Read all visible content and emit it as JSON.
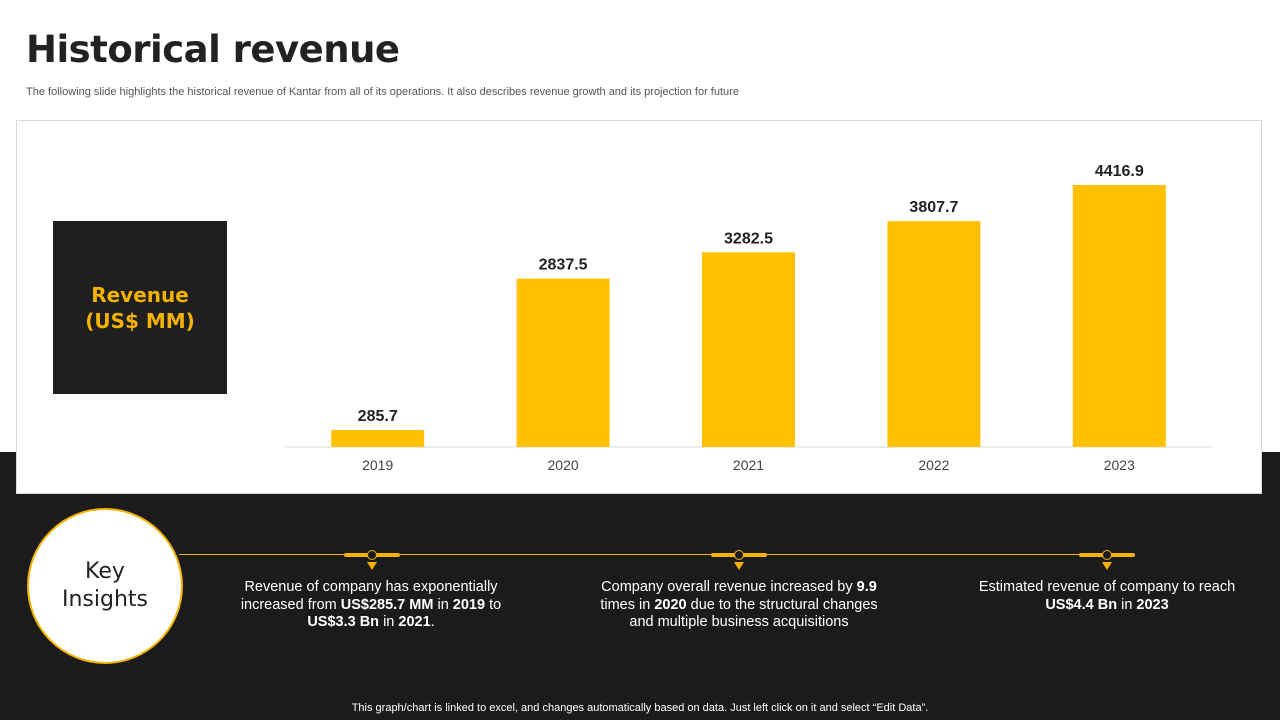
{
  "header": {
    "title": "Historical revenue",
    "subtitle": "The following slide highlights the historical revenue  of Kantar from all of its operations.  It also describes revenue  growth and its projection for future"
  },
  "revenue_box": {
    "label": "Revenue\n(US$ MM)"
  },
  "chart_data": {
    "type": "bar",
    "categories": [
      "2019",
      "2020",
      "2021",
      "2022",
      "2023"
    ],
    "values": [
      285.7,
      2837.5,
      3282.5,
      3807.7,
      4416.9
    ],
    "data_labels": [
      "285.7",
      "2837.5",
      "3282.5",
      "3807.7",
      "4416.9"
    ],
    "ylabel": "Revenue (US$ MM)",
    "ylim": [
      0,
      4500
    ],
    "grid": false,
    "legend": "none",
    "bar_color": "#FFC000"
  },
  "key_insights": {
    "title": "Key\nInsights",
    "items": [
      {
        "parts": [
          {
            "t": "Revenue of company has exponentially increased from ",
            "b": false
          },
          {
            "t": "US$285.7 MM",
            "b": true
          },
          {
            "t": " in ",
            "b": false
          },
          {
            "t": "2019",
            "b": true
          },
          {
            "t": " to ",
            "b": false
          },
          {
            "t": "US$3.3 Bn",
            "b": true
          },
          {
            "t": " in ",
            "b": false
          },
          {
            "t": "2021",
            "b": true
          },
          {
            "t": ".",
            "b": false
          }
        ]
      },
      {
        "parts": [
          {
            "t": "Company overall revenue increased by ",
            "b": false
          },
          {
            "t": "9.9",
            "b": true
          },
          {
            "t": " times  in ",
            "b": false
          },
          {
            "t": "2020",
            "b": true
          },
          {
            "t": " due to the structural changes and multiple business acquisitions",
            "b": false
          }
        ]
      },
      {
        "parts": [
          {
            "t": "Estimated revenue  of company to reach ",
            "b": false
          },
          {
            "t": "US$4.4 Bn",
            "b": true
          },
          {
            "t": " in ",
            "b": false
          },
          {
            "t": "2023",
            "b": true
          }
        ]
      }
    ]
  },
  "footer": {
    "note": "This graph/chart is linked to excel, and changes automatically based on data. Just left click on it and select “Edit Data”."
  },
  "colors": {
    "accent": "#FFC000",
    "dark": "#1B1B1B"
  }
}
